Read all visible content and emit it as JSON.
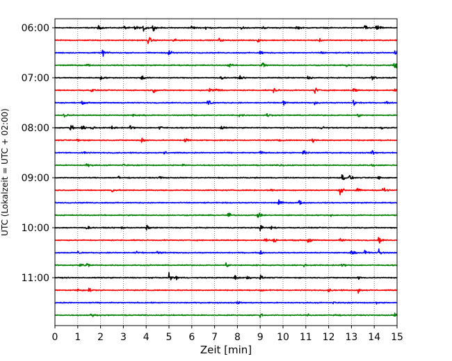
{
  "chart_data": {
    "type": "line",
    "title": "",
    "xlabel": "Zeit  [min]",
    "ylabel": "UTC (Lokalzeit = UTC + 02:00)",
    "xlim": [
      0,
      15
    ],
    "x_ticks": [
      "0",
      "1",
      "2",
      "3",
      "4",
      "5",
      "6",
      "7",
      "8",
      "9",
      "10",
      "11",
      "12",
      "13",
      "14",
      "15"
    ],
    "y_ticks": [
      "06:00",
      "07:00",
      "08:00",
      "09:00",
      "10:00",
      "11:00"
    ],
    "grid": "vertical dotted at each minute",
    "trace_interval_min": 15,
    "color_cycle": [
      "#000000",
      "#ff0000",
      "#0000ff",
      "#008000"
    ],
    "series": [
      {
        "start": "06:00",
        "events": [
          [
            1.9,
            0.5
          ],
          [
            3.0,
            0.5
          ],
          [
            3.5,
            0.7
          ],
          [
            3.9,
            0.9
          ],
          [
            4.3,
            0.6
          ],
          [
            6.0,
            0.5
          ],
          [
            6.6,
            0.5
          ],
          [
            8.2,
            0.5
          ],
          [
            9.1,
            0.4
          ],
          [
            10.6,
            0.5
          ],
          [
            13.6,
            0.8
          ],
          [
            14.1,
            1.0
          ]
        ]
      },
      {
        "start": "06:15",
        "events": [
          [
            4.1,
            1.0
          ],
          [
            5.2,
            0.4
          ],
          [
            7.2,
            0.4
          ],
          [
            8.9,
            0.4
          ],
          [
            11.6,
            0.3
          ]
        ]
      },
      {
        "start": "06:30",
        "events": [
          [
            2.1,
            0.9
          ],
          [
            5.0,
            0.9
          ],
          [
            9.0,
            0.6
          ],
          [
            11.7,
            0.4
          ],
          [
            14.9,
            0.6
          ]
        ]
      },
      {
        "start": "06:45",
        "events": [
          [
            1.4,
            0.3
          ],
          [
            7.6,
            0.8
          ],
          [
            9.1,
            0.9
          ],
          [
            12.8,
            0.4
          ],
          [
            14.9,
            1.2
          ]
        ]
      },
      {
        "start": "07:00",
        "events": [
          [
            2.0,
            0.5
          ],
          [
            3.8,
            0.7
          ],
          [
            7.3,
            0.4
          ],
          [
            8.1,
            0.4
          ],
          [
            11.1,
            0.4
          ],
          [
            13.9,
            0.5
          ]
        ]
      },
      {
        "start": "07:15",
        "events": [
          [
            1.6,
            0.5
          ],
          [
            4.3,
            0.6
          ],
          [
            6.8,
            0.9
          ],
          [
            7.1,
            0.8
          ],
          [
            9.6,
            0.7
          ],
          [
            11.4,
            0.8
          ],
          [
            13.1,
            0.7
          ],
          [
            14.9,
            0.6
          ]
        ]
      },
      {
        "start": "07:30",
        "events": [
          [
            1.2,
            0.3
          ],
          [
            6.7,
            1.3
          ],
          [
            10.0,
            0.7
          ],
          [
            11.4,
            0.4
          ],
          [
            13.1,
            1.0
          ],
          [
            14.5,
            0.3
          ]
        ]
      },
      {
        "start": "07:45",
        "events": [
          [
            0.4,
            0.5
          ],
          [
            3.4,
            0.3
          ],
          [
            6.0,
            0.3
          ],
          [
            8.1,
            0.5
          ],
          [
            9.3,
            0.4
          ],
          [
            13.3,
            0.4
          ]
        ]
      },
      {
        "start": "08:00",
        "events": [
          [
            0.7,
            0.8
          ],
          [
            1.2,
            0.6
          ],
          [
            1.6,
            0.5
          ],
          [
            2.5,
            0.5
          ],
          [
            3.3,
            0.5
          ],
          [
            4.6,
            0.5
          ],
          [
            7.3,
            0.6
          ],
          [
            11.7,
            0.5
          ],
          [
            14.3,
            0.3
          ]
        ]
      },
      {
        "start": "08:15",
        "events": [
          [
            1.0,
            0.5
          ],
          [
            3.8,
            0.8
          ],
          [
            5.7,
            0.8
          ],
          [
            9.8,
            0.3
          ],
          [
            11.3,
            0.6
          ]
        ]
      },
      {
        "start": "08:30",
        "events": [
          [
            1.2,
            0.6
          ],
          [
            4.8,
            0.4
          ],
          [
            9.0,
            0.5
          ],
          [
            10.9,
            0.9
          ],
          [
            13.9,
            0.6
          ]
        ]
      },
      {
        "start": "08:45",
        "events": [
          [
            1.4,
            0.6
          ],
          [
            3.0,
            0.3
          ],
          [
            5.6,
            0.3
          ],
          [
            9.9,
            0.4
          ],
          [
            13.9,
            0.3
          ]
        ]
      },
      {
        "start": "09:00",
        "events": [
          [
            2.8,
            0.5
          ],
          [
            4.6,
            0.4
          ],
          [
            12.6,
            0.8
          ],
          [
            12.9,
            0.7
          ],
          [
            14.2,
            0.5
          ]
        ]
      },
      {
        "start": "09:15",
        "events": [
          [
            2.5,
            0.5
          ],
          [
            9.5,
            0.3
          ],
          [
            12.5,
            1.1
          ],
          [
            13.2,
            0.7
          ],
          [
            14.4,
            1.0
          ]
        ]
      },
      {
        "start": "09:30",
        "events": [
          [
            9.8,
            0.7
          ],
          [
            10.7,
            0.6
          ]
        ]
      },
      {
        "start": "09:45",
        "events": [
          [
            7.6,
            0.8
          ],
          [
            8.9,
            0.6
          ],
          [
            12.1,
            0.2
          ]
        ]
      },
      {
        "start": "10:00",
        "events": [
          [
            1.4,
            0.4
          ],
          [
            2.9,
            0.3
          ],
          [
            4.0,
            0.6
          ],
          [
            9.0,
            0.6
          ],
          [
            9.5,
            0.5
          ]
        ]
      },
      {
        "start": "10:15",
        "events": [
          [
            9.2,
            0.6
          ],
          [
            9.6,
            0.5
          ],
          [
            11.1,
            0.8
          ],
          [
            12.5,
            0.6
          ],
          [
            14.2,
            0.8
          ]
        ]
      },
      {
        "start": "10:30",
        "events": [
          [
            1.0,
            0.4
          ],
          [
            3.5,
            0.4
          ],
          [
            4.5,
            0.5
          ],
          [
            9.0,
            0.4
          ],
          [
            13.0,
            0.6
          ],
          [
            13.6,
            0.8
          ],
          [
            14.2,
            0.9
          ]
        ]
      },
      {
        "start": "10:45",
        "events": [
          [
            1.1,
            0.8
          ],
          [
            1.4,
            0.6
          ],
          [
            7.5,
            0.5
          ],
          [
            8.7,
            0.3
          ],
          [
            10.9,
            0.4
          ],
          [
            12.6,
            0.4
          ]
        ]
      },
      {
        "start": "11:00",
        "events": [
          [
            5.0,
            0.9
          ],
          [
            5.3,
            0.6
          ],
          [
            7.9,
            0.6
          ],
          [
            8.4,
            0.7
          ],
          [
            9.0,
            0.6
          ],
          [
            13.3,
            0.4
          ]
        ]
      },
      {
        "start": "11:15",
        "events": [
          [
            1.0,
            0.5
          ],
          [
            1.5,
            0.5
          ],
          [
            9.0,
            0.6
          ],
          [
            12.0,
            0.4
          ],
          [
            13.3,
            0.5
          ]
        ]
      },
      {
        "start": "11:30",
        "events": [
          [
            8.0,
            0.3
          ],
          [
            12.2,
            0.2
          ],
          [
            14.1,
            0.3
          ]
        ]
      },
      {
        "start": "11:45",
        "events": [
          [
            1.6,
            0.4
          ],
          [
            9.0,
            0.5
          ],
          [
            11.1,
            0.3
          ],
          [
            12.2,
            0.4
          ],
          [
            14.9,
            0.5
          ]
        ]
      }
    ]
  }
}
